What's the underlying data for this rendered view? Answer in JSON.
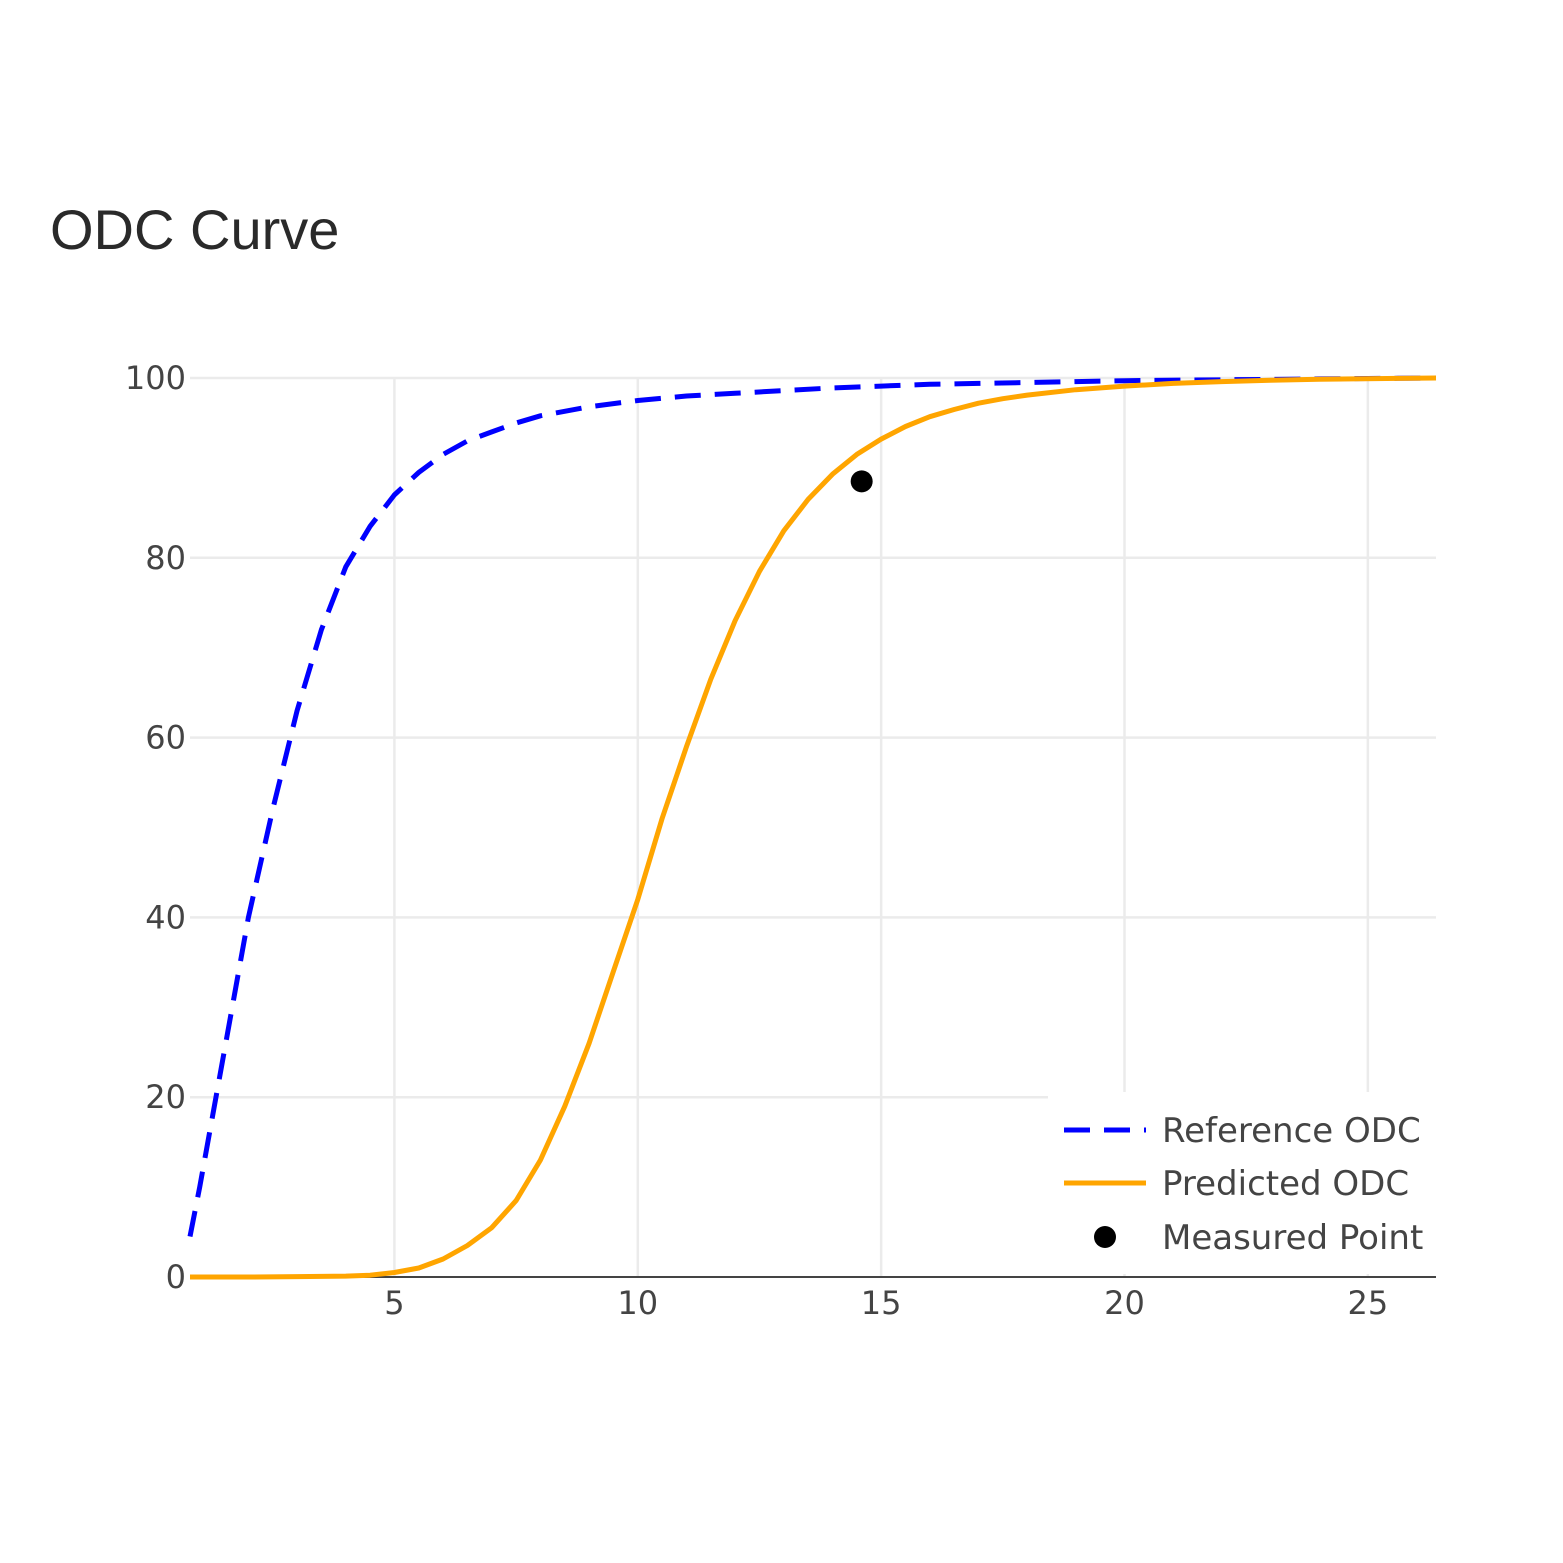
{
  "chart_data": {
    "type": "line",
    "title": "ODC Curve",
    "xlabel": "",
    "ylabel": "",
    "xlim": [
      0.8,
      26.4
    ],
    "ylim": [
      0,
      100
    ],
    "xticks": [
      5,
      10,
      15,
      20,
      25
    ],
    "yticks": [
      0,
      20,
      40,
      60,
      80,
      100
    ],
    "grid": true,
    "legend_position": "bottom-right",
    "series": [
      {
        "name": "Reference ODC",
        "style": "dashed",
        "color": "#0000ff",
        "x": [
          0.8,
          1.0,
          1.5,
          2.0,
          2.5,
          3.0,
          3.5,
          4.0,
          4.5,
          5.0,
          5.5,
          6.0,
          6.5,
          7.0,
          7.5,
          8.0,
          9.0,
          10.0,
          11.0,
          12.0,
          13.0,
          14.0,
          15.0,
          16.0,
          17.0,
          18.0,
          19.0,
          20.0,
          22.0,
          24.0,
          26.4
        ],
        "y": [
          4.5,
          10,
          25,
          40,
          52,
          63,
          72,
          79,
          83.5,
          87,
          89.5,
          91.5,
          93,
          94,
          95,
          95.8,
          96.8,
          97.5,
          98,
          98.3,
          98.6,
          98.9,
          99.1,
          99.3,
          99.4,
          99.5,
          99.6,
          99.7,
          99.8,
          99.9,
          100
        ]
      },
      {
        "name": "Predicted ODC",
        "style": "solid",
        "color": "#ffa500",
        "x": [
          0.8,
          2.0,
          3.0,
          4.0,
          4.5,
          5.0,
          5.5,
          6.0,
          6.5,
          7.0,
          7.5,
          8.0,
          8.5,
          9.0,
          9.5,
          10.0,
          10.5,
          11.0,
          11.5,
          12.0,
          12.5,
          13.0,
          13.5,
          14.0,
          14.5,
          15.0,
          15.5,
          16.0,
          16.5,
          17.0,
          17.5,
          18.0,
          19.0,
          20.0,
          21.0,
          22.0,
          23.0,
          24.0,
          26.4
        ],
        "y": [
          0,
          0,
          0.05,
          0.1,
          0.2,
          0.5,
          1,
          2,
          3.5,
          5.5,
          8.5,
          13,
          19,
          26,
          34,
          42,
          51,
          59,
          66.5,
          73,
          78.5,
          83,
          86.5,
          89.3,
          91.5,
          93.2,
          94.6,
          95.7,
          96.5,
          97.2,
          97.7,
          98.1,
          98.7,
          99.1,
          99.4,
          99.6,
          99.75,
          99.85,
          100
        ]
      },
      {
        "name": "Measured Point",
        "style": "marker",
        "color": "#000000",
        "x": [
          14.6
        ],
        "y": [
          88.5
        ]
      }
    ]
  }
}
